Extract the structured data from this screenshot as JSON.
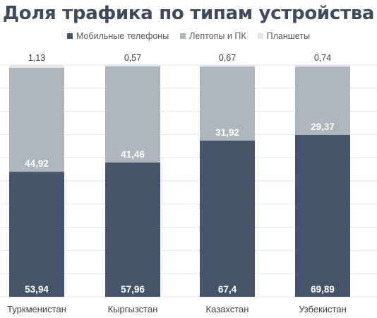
{
  "chart_data": {
    "type": "bar",
    "stacked": true,
    "title": "Доля трафика по типам устройства",
    "categories": [
      "Туркменистан",
      "Кыргызстан",
      "Казахстан",
      "Узбекистан"
    ],
    "series": [
      {
        "name": "Мобильные телефоны",
        "color": "#44546a",
        "values": [
          53.94,
          57.96,
          67.4,
          69.89
        ],
        "labels": [
          "53,94",
          "57,96",
          "67,4",
          "69,89"
        ]
      },
      {
        "name": "Лептопы и ПК",
        "color": "#adb5bd",
        "values": [
          44.92,
          41.46,
          31.92,
          29.37
        ],
        "labels": [
          "44,92",
          "41,46",
          "31,92",
          "29,37"
        ]
      },
      {
        "name": "Планшеты",
        "color": "#e3e5e8",
        "values": [
          1.13,
          0.57,
          0.67,
          0.74
        ],
        "labels": [
          "1,13",
          "0,57",
          "0,67",
          "0,74"
        ]
      }
    ],
    "ylim": [
      0,
      100
    ],
    "grid": true,
    "legend_position": "top"
  }
}
